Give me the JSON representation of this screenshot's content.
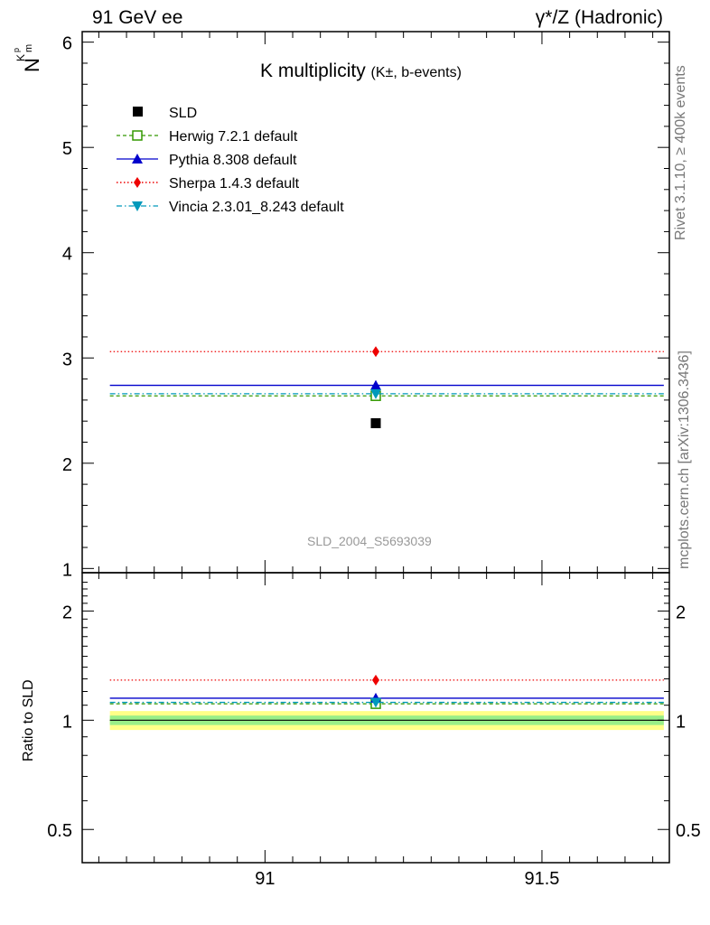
{
  "header": {
    "left": "91 GeV ee",
    "right": "γ*/Z (Hadronic)"
  },
  "side_labels": {
    "rivet": "Rivet 3.1.10, ≥ 400k events",
    "mcplots": "mcplots.cern.ch [arXiv:1306.3436]"
  },
  "legend": {
    "sld": "SLD",
    "herwig": "Herwig 7.2.1 default",
    "pythia": "Pythia 8.308 default",
    "sherpa": "Sherpa 1.4.3 default",
    "vincia": "Vincia 2.3.01_8.243 default"
  },
  "chart_data": [
    {
      "type": "scatter",
      "title": "K multiplicity",
      "title_suffix": "(K±, b-events)",
      "ylabel": "N",
      "ylabel_sub": "K",
      "ylabel_sup": "p",
      "ylabel_sub2": "m",
      "watermark": "SLD_2004_S5693039",
      "xlim": [
        90.67,
        91.73
      ],
      "ylim": [
        0.96,
        6.1
      ],
      "yticks": [
        1,
        2,
        3,
        4,
        5,
        6
      ],
      "ytick_labels": [
        "1",
        "2",
        "3",
        "4",
        "5",
        "6"
      ],
      "bin": [
        90.72,
        91.72
      ],
      "data_point": {
        "name": "SLD",
        "x": 91.2,
        "y": 2.38
      },
      "series": [
        {
          "name": "Herwig 7.2.1 default",
          "y": 2.64,
          "color": "#339900",
          "marker": "open-square",
          "line": "dashed"
        },
        {
          "name": "Pythia 8.308 default",
          "y": 2.74,
          "color": "#0000cc",
          "marker": "triangle-up",
          "line": "solid"
        },
        {
          "name": "Sherpa 1.4.3 default",
          "y": 3.06,
          "color": "#ee0000",
          "marker": "diamond",
          "line": "dotted"
        },
        {
          "name": "Vincia 2.3.01_8.243 default",
          "y": 2.66,
          "color": "#0099bb",
          "marker": "triangle-down",
          "line": "dashdot"
        }
      ]
    },
    {
      "type": "scatter",
      "title": "",
      "ylabel": "Ratio to SLD",
      "xlim": [
        90.67,
        91.73
      ],
      "ylim": [
        0.405,
        2.55
      ],
      "yscale": "log",
      "yticks": [
        0.5,
        1,
        2
      ],
      "ytick_labels": [
        "0.5",
        "1",
        "2"
      ],
      "xticks": [
        91,
        91.5
      ],
      "xtick_labels": [
        "91",
        "91.5"
      ],
      "bin": [
        90.72,
        91.72
      ],
      "band_inner": [
        0.97,
        1.03
      ],
      "band_outer": [
        0.94,
        1.06
      ],
      "series": [
        {
          "name": "Herwig 7.2.1 default",
          "y": 1.11,
          "color": "#339900"
        },
        {
          "name": "Pythia 8.308 default",
          "y": 1.15,
          "color": "#0000cc"
        },
        {
          "name": "Sherpa 1.4.3 default",
          "y": 1.29,
          "color": "#ee0000"
        },
        {
          "name": "Vincia 2.3.01_8.243 default",
          "y": 1.12,
          "color": "#0099bb"
        }
      ]
    }
  ]
}
